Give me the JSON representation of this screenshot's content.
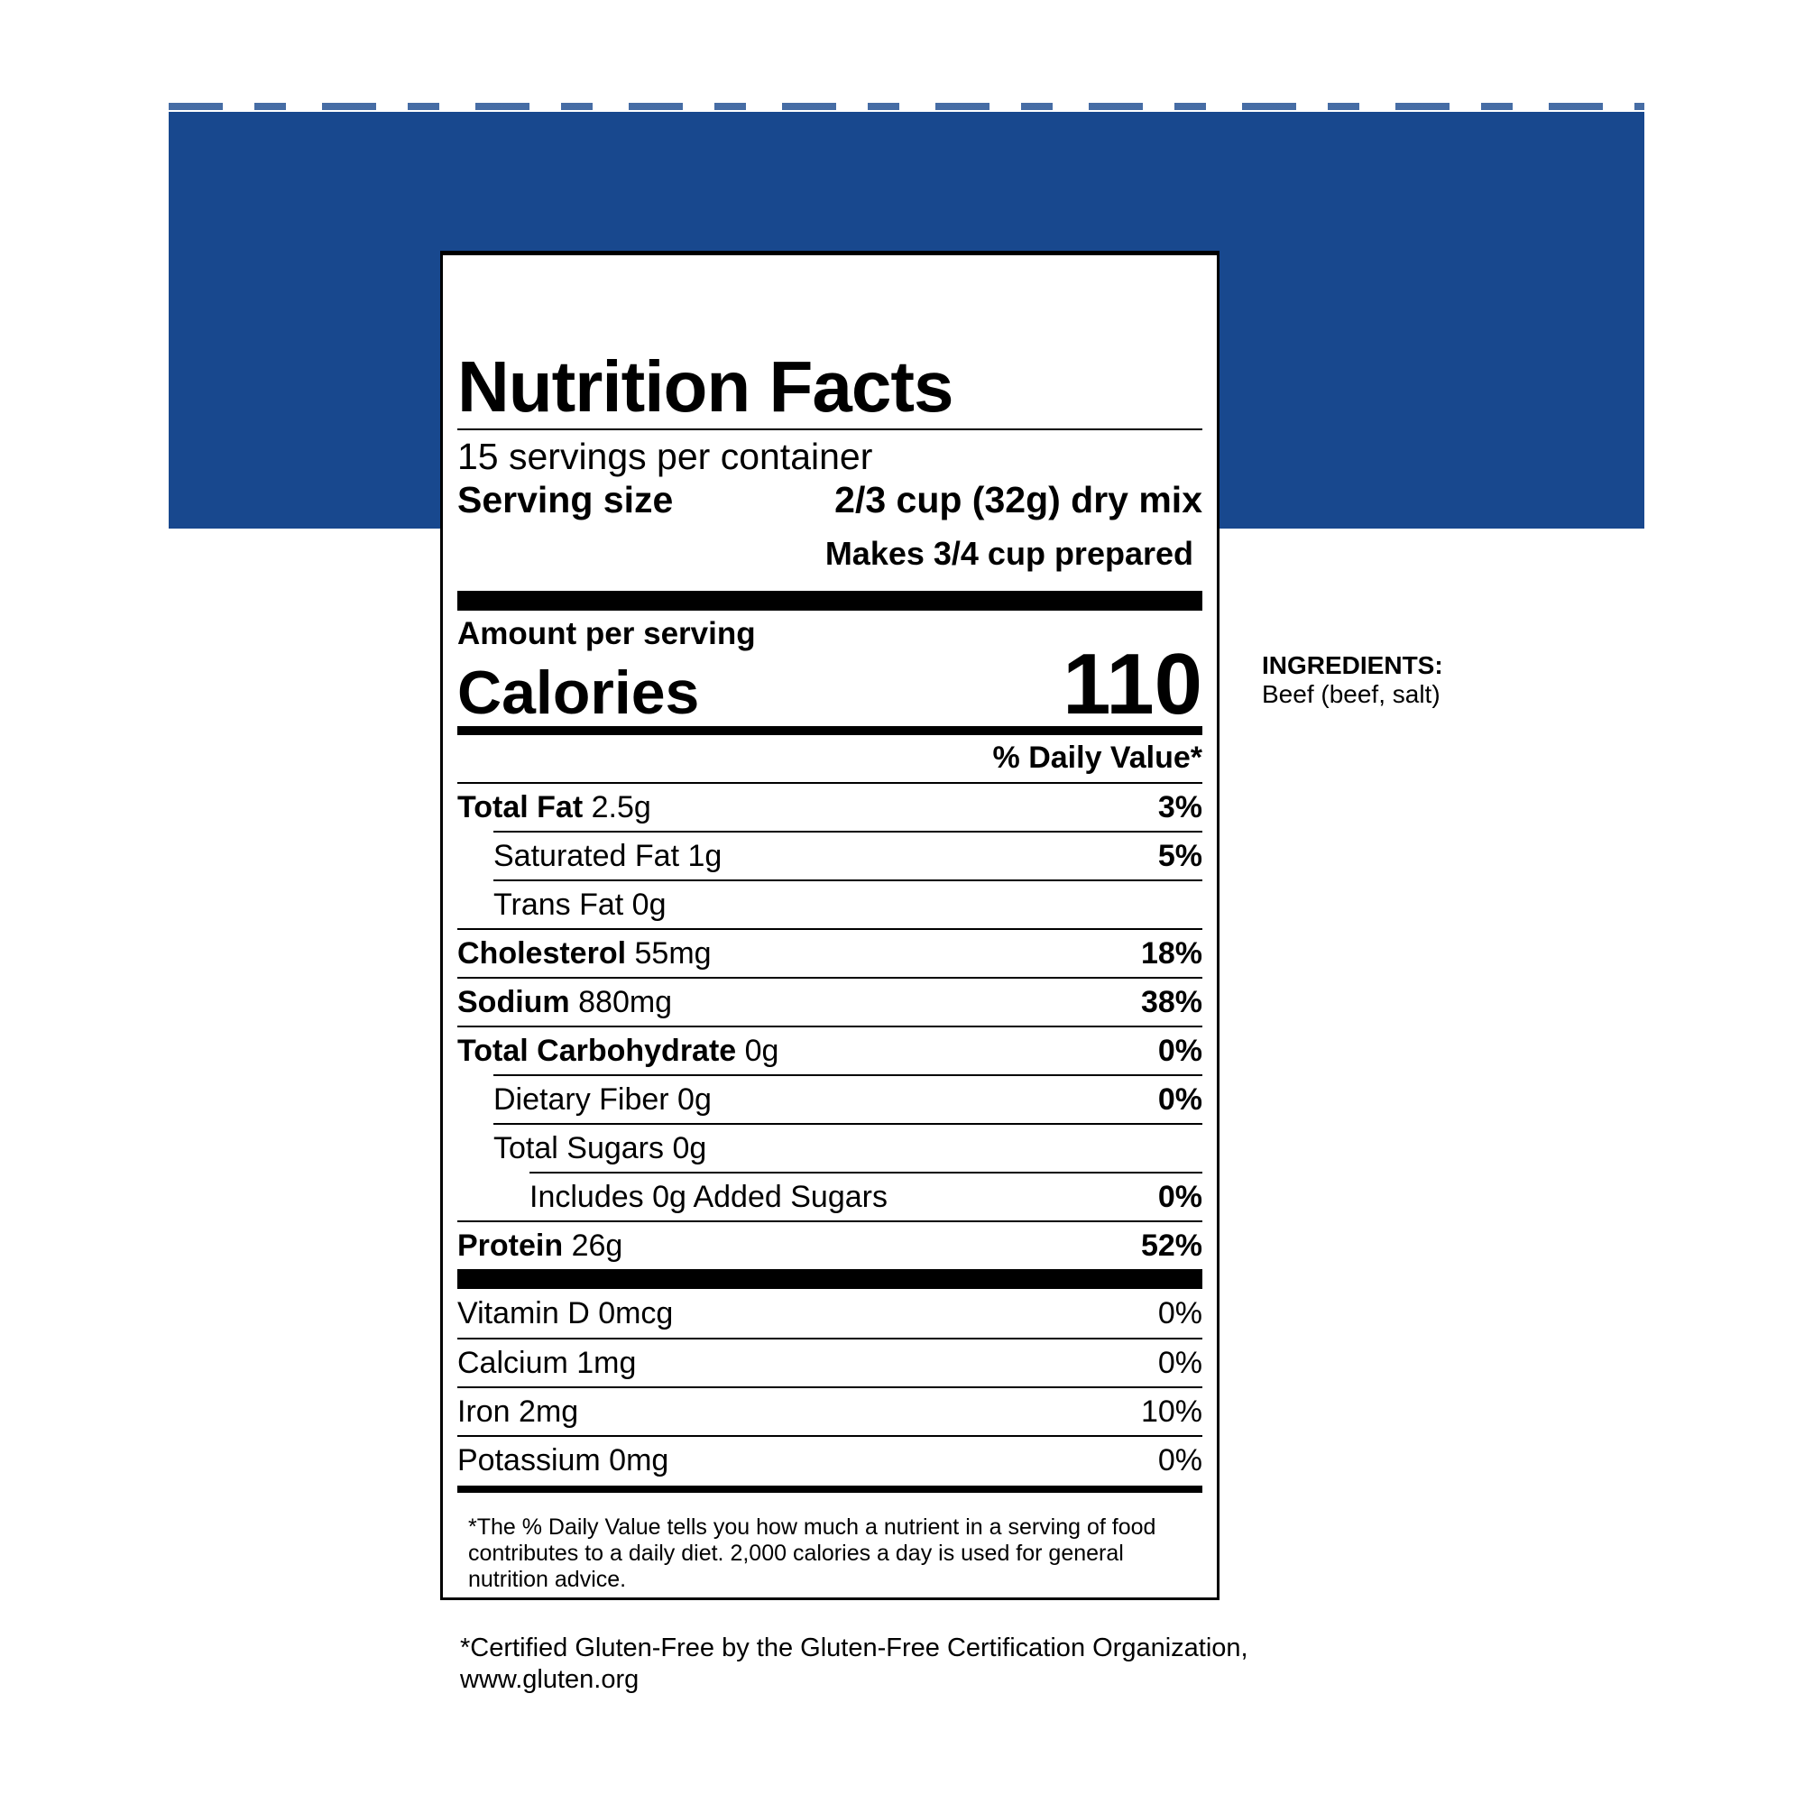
{
  "colors": {
    "band": "#18488e"
  },
  "label": {
    "title": "Nutrition Facts",
    "servings": "15 servings per container",
    "serving_size_label": "Serving size",
    "serving_size_value": "2/3 cup (32g) dry mix",
    "makes": "Makes 3/4 cup prepared",
    "amount_per_serving": "Amount per serving",
    "calories_label": "Calories",
    "calories_value": "110",
    "dv_header": "% Daily Value*",
    "nutrients": [
      {
        "name": "Total Fat",
        "amount": "2.5g",
        "dv": "3%"
      },
      {
        "name": "Saturated Fat 1g",
        "amount": "",
        "dv": "5%"
      },
      {
        "name": "Trans Fat 0g",
        "amount": "",
        "dv": ""
      },
      {
        "name": "Cholesterol",
        "amount": "55mg",
        "dv": "18%"
      },
      {
        "name": "Sodium",
        "amount": "880mg",
        "dv": "38%"
      },
      {
        "name": "Total Carbohydrate",
        "amount": "0g",
        "dv": "0%"
      },
      {
        "name": "Dietary Fiber 0g",
        "amount": "",
        "dv": "0%"
      },
      {
        "name": "Total Sugars 0g",
        "amount": "",
        "dv": ""
      },
      {
        "name": "Includes 0g Added Sugars",
        "amount": "",
        "dv": "0%"
      },
      {
        "name": "Protein",
        "amount": "26g",
        "dv": "52%"
      }
    ],
    "vitamins": [
      {
        "name": "Vitamin D 0mcg",
        "dv": "0%"
      },
      {
        "name": "Calcium 1mg",
        "dv": "0%"
      },
      {
        "name": "Iron 2mg",
        "dv": "10%"
      },
      {
        "name": "Potassium 0mg",
        "dv": "0%"
      }
    ],
    "footnote": "*The % Daily Value tells you how much a nutrient in a serving of food contributes to a daily diet. 2,000 calories a day is used for general nutrition advice."
  },
  "ingredients": {
    "heading": "INGREDIENTS:",
    "text": "Beef (beef, salt)"
  },
  "gluten_note": {
    "line1": "*Certified Gluten-Free by the Gluten-Free Certification Organization,",
    "line2": "www.gluten.org"
  }
}
